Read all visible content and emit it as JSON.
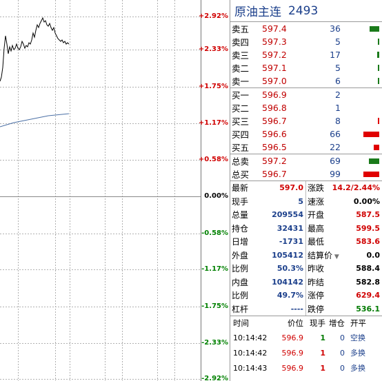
{
  "chart": {
    "pct_labels": [
      {
        "text": "+2.92%",
        "kind": "up"
      },
      {
        "text": "+2.33%",
        "kind": "up"
      },
      {
        "text": "+1.75%",
        "kind": "up"
      },
      {
        "text": "+1.17%",
        "kind": "up"
      },
      {
        "text": "+0.58%",
        "kind": "up"
      },
      {
        "text": "0.00%",
        "kind": "zero"
      },
      {
        "text": "-0.58%",
        "kind": "down"
      },
      {
        "text": "-1.17%",
        "kind": "down"
      },
      {
        "text": "-1.75%",
        "kind": "down"
      },
      {
        "text": "-2.33%",
        "kind": "down"
      },
      {
        "text": "-2.92%",
        "kind": "down"
      }
    ],
    "colors": {
      "price_line": "#000000",
      "avg_line": "#4a6fa5",
      "grid": "#b0b0b0"
    }
  },
  "title": {
    "name": "原油主连",
    "code": "2493"
  },
  "asks": [
    {
      "label": "卖五",
      "price": "597.4",
      "qty": "36",
      "bar": 0.25,
      "bar_color": "#1a7a1a"
    },
    {
      "label": "卖四",
      "price": "597.3",
      "qty": "5",
      "bar": 0.03,
      "bar_color": "#1a7a1a"
    },
    {
      "label": "卖三",
      "price": "597.2",
      "qty": "17",
      "bar": 0.06,
      "bar_color": "#1a7a1a"
    },
    {
      "label": "卖二",
      "price": "597.1",
      "qty": "5",
      "bar": 0.03,
      "bar_color": "#1a7a1a"
    },
    {
      "label": "卖一",
      "price": "597.0",
      "qty": "6",
      "bar": 0.03,
      "bar_color": "#1a7a1a"
    }
  ],
  "bids": [
    {
      "label": "买一",
      "price": "596.9",
      "qty": "2",
      "bar": 0.0,
      "bar_color": "#e00000"
    },
    {
      "label": "买二",
      "price": "596.8",
      "qty": "1",
      "bar": 0.0,
      "bar_color": "#e00000"
    },
    {
      "label": "买三",
      "price": "596.7",
      "qty": "8",
      "bar": 0.03,
      "bar_color": "#e00000"
    },
    {
      "label": "买四",
      "price": "596.6",
      "qty": "66",
      "bar": 0.42,
      "bar_color": "#e00000"
    },
    {
      "label": "买五",
      "price": "596.5",
      "qty": "22",
      "bar": 0.14,
      "bar_color": "#e00000"
    }
  ],
  "totals": [
    {
      "label": "总卖",
      "price": "597.2",
      "qty": "69",
      "bar": 0.28,
      "bar_color": "#1a7a1a"
    },
    {
      "label": "总买",
      "price": "596.7",
      "qty": "99",
      "bar": 0.42,
      "bar_color": "#e00000"
    }
  ],
  "stats_left": [
    {
      "label": "最新",
      "value": "597.0",
      "color": "red"
    },
    {
      "label": "现手",
      "value": "5",
      "color": "blue"
    },
    {
      "label": "总量",
      "value": "209554",
      "color": "blue"
    },
    {
      "label": "持仓",
      "value": "32431",
      "color": "blue"
    },
    {
      "label": "日增",
      "value": "-1731",
      "color": "blue"
    },
    {
      "label": "外盘",
      "value": "105412",
      "color": "blue"
    },
    {
      "label": "比例",
      "value": "50.3%",
      "color": "blue"
    },
    {
      "label": "内盘",
      "value": "104142",
      "color": "blue"
    },
    {
      "label": "比例",
      "value": "49.7%",
      "color": "blue"
    },
    {
      "label": "杠杆",
      "value": "----",
      "color": "blue"
    }
  ],
  "stats_right": [
    {
      "label": "涨跌",
      "value": "14.2/2.44%",
      "color": "red"
    },
    {
      "label": "速涨",
      "value": "0.00%",
      "color": "black"
    },
    {
      "label": "开盘",
      "value": "587.5",
      "color": "red"
    },
    {
      "label": "最高",
      "value": "599.5",
      "color": "red"
    },
    {
      "label": "最低",
      "value": "583.6",
      "color": "red"
    },
    {
      "label": "结算价",
      "value": "0.0",
      "color": "black",
      "dropdown": true
    },
    {
      "label": "昨收",
      "value": "588.4",
      "color": "black"
    },
    {
      "label": "昨结",
      "value": "582.8",
      "color": "black"
    },
    {
      "label": "涨停",
      "value": "629.4",
      "color": "red"
    },
    {
      "label": "跌停",
      "value": "536.1",
      "color": "green"
    }
  ],
  "ticks_header": {
    "time": "时间",
    "price": "价位",
    "vol": "现手",
    "chg": "增仓",
    "type": "开平"
  },
  "ticks": [
    {
      "time": "10:14:42",
      "price": "596.9",
      "vol": "1",
      "vol_color": "green",
      "chg": "0",
      "type": "空换"
    },
    {
      "time": "10:14:42",
      "price": "596.9",
      "vol": "1",
      "vol_color": "red",
      "chg": "0",
      "type": "多换"
    },
    {
      "time": "10:14:43",
      "price": "596.9",
      "vol": "1",
      "vol_color": "red",
      "chg": "0",
      "type": "多换"
    }
  ]
}
